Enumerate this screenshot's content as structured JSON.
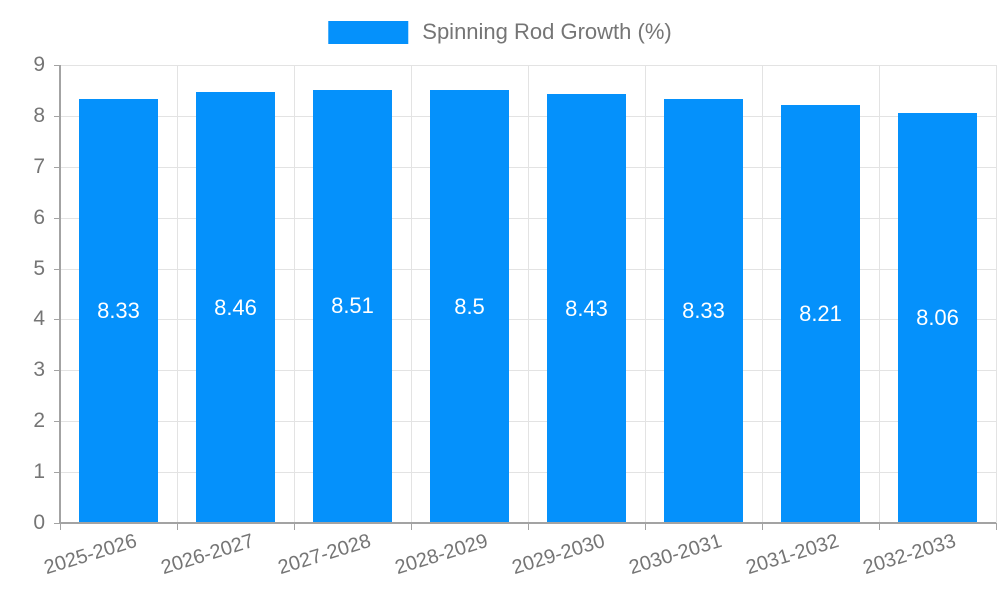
{
  "legend": {
    "label": "Spinning Rod Growth (%)"
  },
  "colors": {
    "bar": "#0591fb",
    "axis": "#a3a3a3",
    "grid": "#e3e3e3",
    "tick_text": "#757575",
    "value_label_text": "#ffffff",
    "legend_text": "#757575"
  },
  "chart_data": {
    "type": "bar",
    "title": "Spinning Rod Growth (%)",
    "categories": [
      "2025-2026",
      "2026-2027",
      "2027-2028",
      "2028-2029",
      "2029-2030",
      "2030-2031",
      "2031-2032",
      "2032-2033"
    ],
    "series": [
      {
        "name": "Spinning Rod Growth (%)",
        "values": [
          8.33,
          8.46,
          8.51,
          8.5,
          8.43,
          8.33,
          8.21,
          8.06
        ]
      }
    ],
    "value_labels": [
      "8.33",
      "8.46",
      "8.51",
      "8.5",
      "8.43",
      "8.33",
      "8.21",
      "8.06"
    ],
    "ylim": [
      0,
      9
    ],
    "yticks": [
      0,
      1,
      2,
      3,
      4,
      5,
      6,
      7,
      8,
      9
    ],
    "grid": true,
    "legend_position": "top",
    "value_labels_position": "inside-center"
  }
}
